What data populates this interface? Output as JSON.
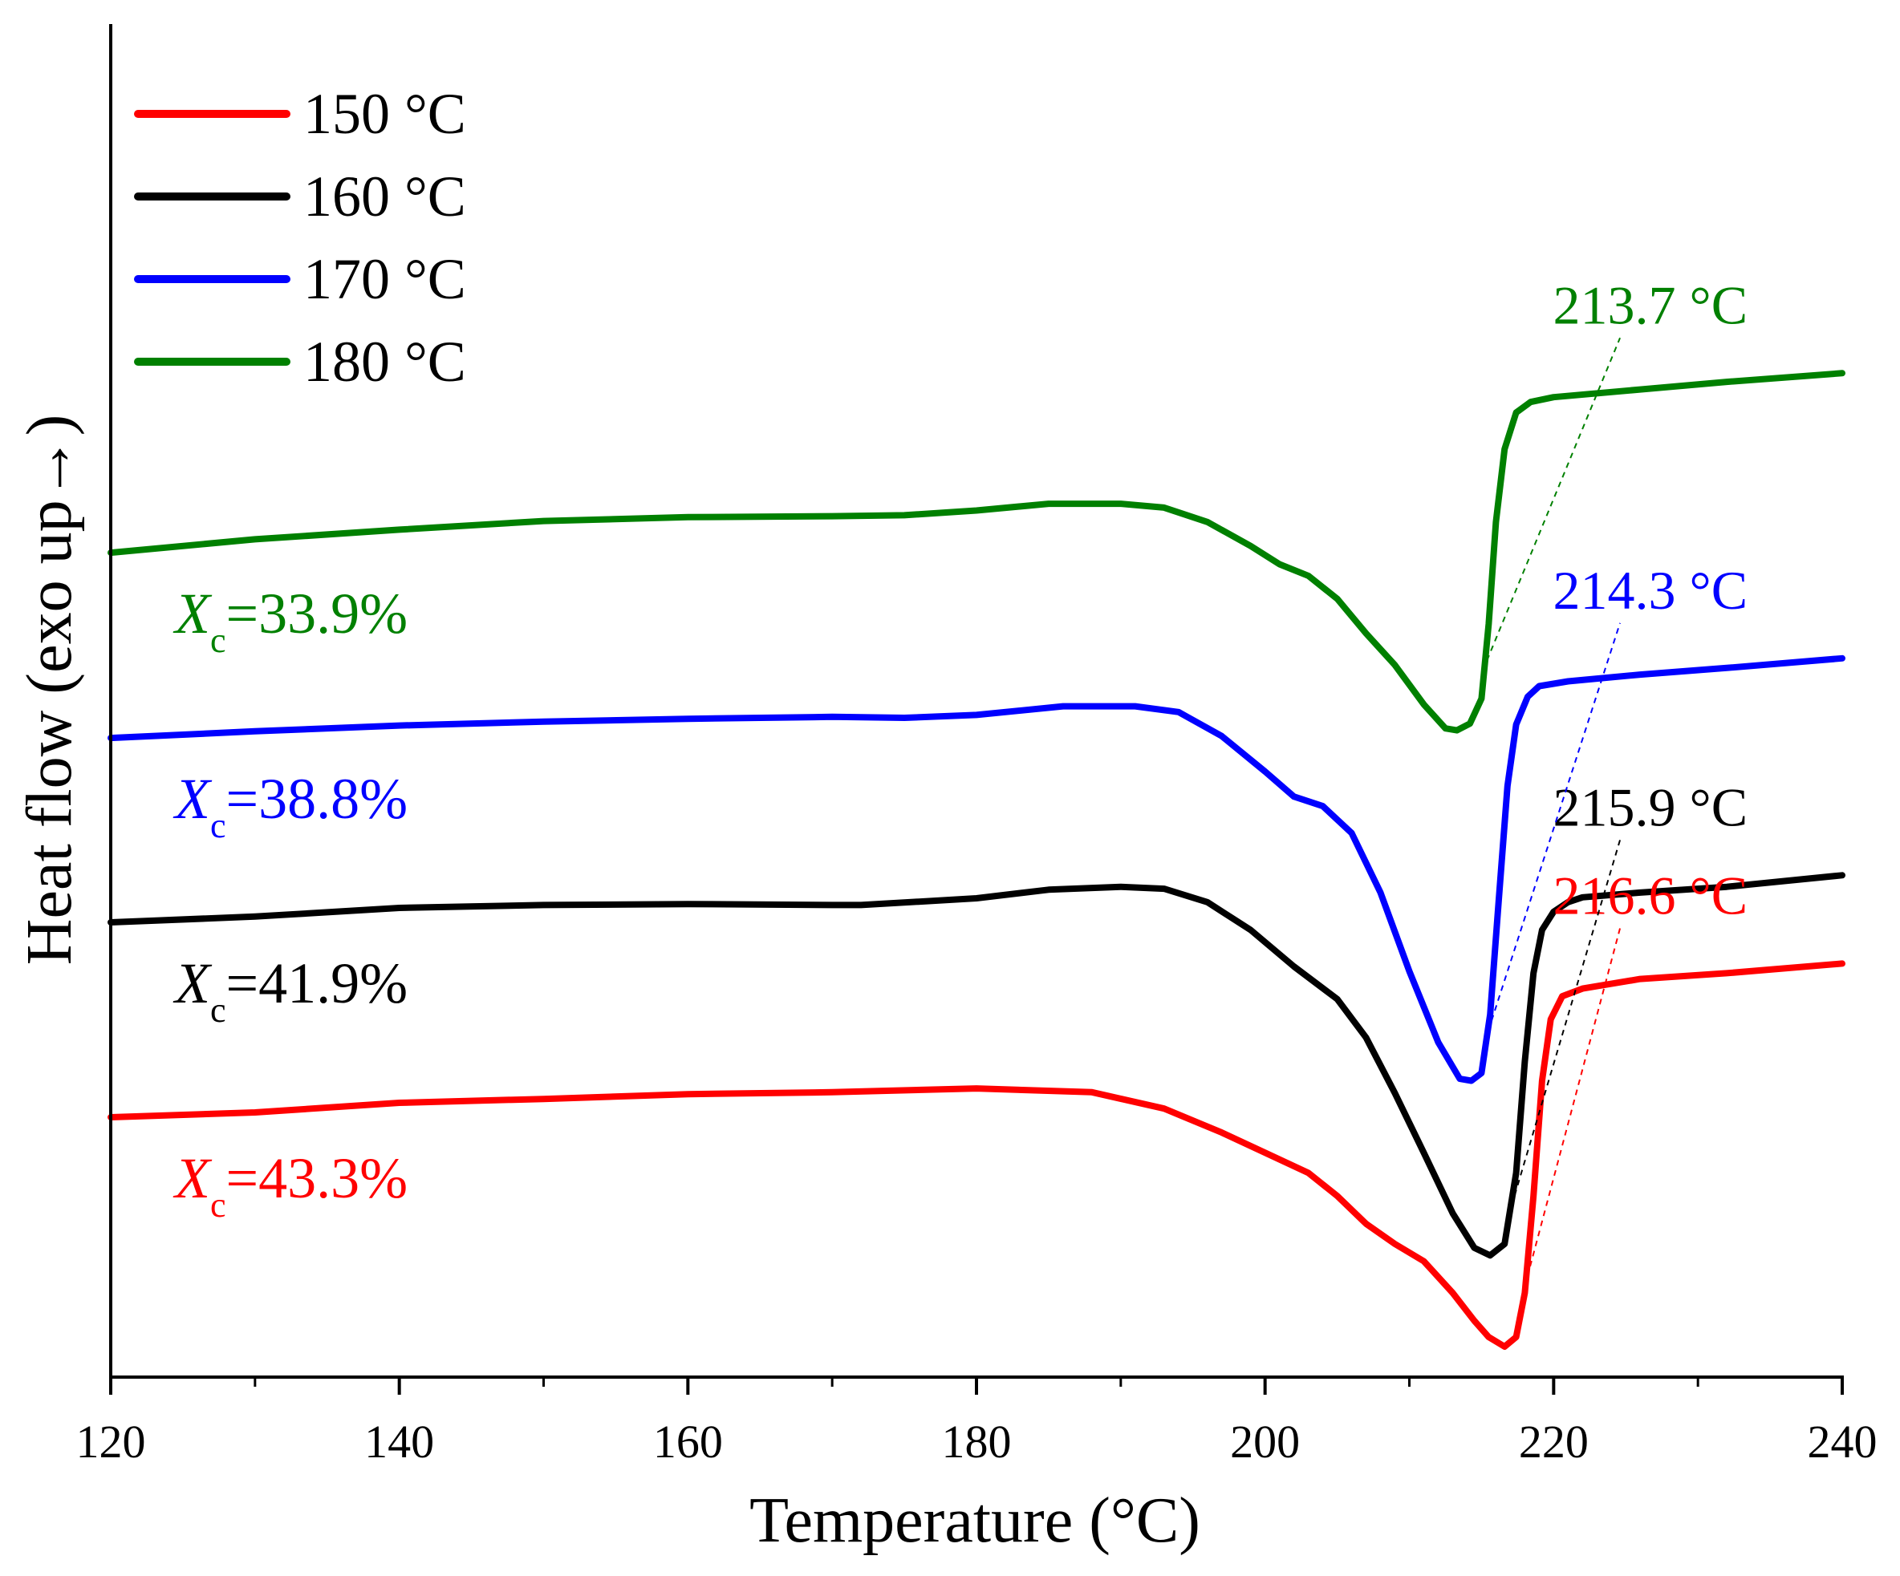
{
  "chart_data": {
    "type": "line",
    "title": "",
    "xlabel": "Temperature (°C)",
    "ylabel": "Heat flow (exo up→)",
    "xlim": [
      120,
      240
    ],
    "ylim": [
      0,
      100
    ],
    "x_ticks": [
      120,
      140,
      160,
      180,
      200,
      220,
      240
    ],
    "x_tick_labels": [
      "120",
      "140",
      "160",
      "180",
      "200",
      "220",
      "240"
    ],
    "grid": false,
    "legend_position": "top-left",
    "series": [
      {
        "name": "150 °C",
        "color": "#ff0000",
        "peak_label": "216.6 °C",
        "peak_temperature": 216.6,
        "xc_symbol": "X",
        "xc_subscript": "c",
        "xc_value": "=43.3%",
        "points": [
          [
            120,
            25.4
          ],
          [
            130,
            25.9
          ],
          [
            140,
            26.9
          ],
          [
            150,
            27.3
          ],
          [
            160,
            27.8
          ],
          [
            170,
            28.0
          ],
          [
            180,
            28.4
          ],
          [
            188,
            28.0
          ],
          [
            193,
            26.3
          ],
          [
            197,
            23.8
          ],
          [
            200,
            21.7
          ],
          [
            203,
            19.6
          ],
          [
            205,
            17.2
          ],
          [
            207,
            14.3
          ],
          [
            209,
            12.2
          ],
          [
            211,
            10.4
          ],
          [
            213,
            7.1
          ],
          [
            214.5,
            4.2
          ],
          [
            215.5,
            2.5
          ],
          [
            216.6,
            1.5
          ],
          [
            217.4,
            2.5
          ],
          [
            218,
            7.1
          ],
          [
            218.6,
            17.2
          ],
          [
            219.2,
            29.2
          ],
          [
            219.8,
            35.6
          ],
          [
            220.6,
            38.0
          ],
          [
            222,
            38.8
          ],
          [
            226,
            39.8
          ],
          [
            232,
            40.4
          ],
          [
            240,
            41.4
          ]
        ]
      },
      {
        "name": "160 °C",
        "color": "#000000",
        "peak_label": "215.9 °C",
        "peak_temperature": 215.9,
        "xc_symbol": "X",
        "xc_subscript": "c",
        "xc_value": "=41.9%",
        "points": [
          [
            120,
            45.7
          ],
          [
            130,
            46.3
          ],
          [
            140,
            47.2
          ],
          [
            150,
            47.5
          ],
          [
            160,
            47.6
          ],
          [
            170,
            47.5
          ],
          [
            172,
            47.5
          ],
          [
            180,
            48.2
          ],
          [
            185,
            49.1
          ],
          [
            190,
            49.4
          ],
          [
            193,
            49.2
          ],
          [
            196,
            47.8
          ],
          [
            199,
            44.9
          ],
          [
            202,
            41.1
          ],
          [
            205,
            37.7
          ],
          [
            207,
            33.7
          ],
          [
            209,
            27.9
          ],
          [
            211,
            21.7
          ],
          [
            213,
            15.4
          ],
          [
            214.5,
            11.8
          ],
          [
            215.6,
            11.0
          ],
          [
            216.6,
            12.2
          ],
          [
            217.4,
            19.6
          ],
          [
            218,
            31.2
          ],
          [
            218.6,
            40.4
          ],
          [
            219.2,
            44.9
          ],
          [
            220,
            46.8
          ],
          [
            221,
            47.8
          ],
          [
            222,
            48.3
          ],
          [
            226,
            48.8
          ],
          [
            232,
            49.4
          ],
          [
            240,
            50.6
          ]
        ]
      },
      {
        "name": "170 °C",
        "color": "#0000ff",
        "peak_label": "214.3 °C",
        "peak_temperature": 214.3,
        "xc_symbol": "X",
        "xc_subscript": "c",
        "xc_value": "=38.8%",
        "points": [
          [
            120,
            64.9
          ],
          [
            130,
            65.6
          ],
          [
            140,
            66.2
          ],
          [
            150,
            66.6
          ],
          [
            160,
            66.9
          ],
          [
            170,
            67.1
          ],
          [
            175,
            67.0
          ],
          [
            180,
            67.3
          ],
          [
            186,
            68.2
          ],
          [
            191,
            68.2
          ],
          [
            194,
            67.6
          ],
          [
            197,
            65.1
          ],
          [
            200,
            61.4
          ],
          [
            202,
            58.8
          ],
          [
            204,
            57.8
          ],
          [
            206,
            55.0
          ],
          [
            208,
            48.8
          ],
          [
            210,
            40.6
          ],
          [
            212,
            33.2
          ],
          [
            213.5,
            29.4
          ],
          [
            214.3,
            29.2
          ],
          [
            215,
            30.0
          ],
          [
            215.6,
            36.1
          ],
          [
            216.2,
            48.1
          ],
          [
            216.8,
            59.9
          ],
          [
            217.4,
            66.3
          ],
          [
            218.2,
            69.2
          ],
          [
            219,
            70.3
          ],
          [
            221,
            70.8
          ],
          [
            226,
            71.5
          ],
          [
            232,
            72.2
          ],
          [
            240,
            73.2
          ]
        ]
      },
      {
        "name": "180 °C",
        "color": "#008000",
        "peak_label": "213.7 °C",
        "peak_temperature": 213.7,
        "xc_symbol": "X",
        "xc_subscript": "c",
        "xc_value": "=33.9%",
        "points": [
          [
            120,
            84.2
          ],
          [
            130,
            85.6
          ],
          [
            140,
            86.6
          ],
          [
            150,
            87.5
          ],
          [
            160,
            87.9
          ],
          [
            170,
            88.0
          ],
          [
            175,
            88.1
          ],
          [
            180,
            88.6
          ],
          [
            185,
            89.3
          ],
          [
            190,
            89.3
          ],
          [
            193,
            88.9
          ],
          [
            196,
            87.4
          ],
          [
            199,
            84.9
          ],
          [
            201,
            83.0
          ],
          [
            203,
            81.8
          ],
          [
            205,
            79.4
          ],
          [
            207,
            75.8
          ],
          [
            209,
            72.5
          ],
          [
            211,
            68.4
          ],
          [
            212.5,
            65.9
          ],
          [
            213.3,
            65.7
          ],
          [
            214.2,
            66.4
          ],
          [
            215,
            69.0
          ],
          [
            215.5,
            76.8
          ],
          [
            216,
            87.4
          ],
          [
            216.6,
            95.0
          ],
          [
            217.4,
            98.8
          ],
          [
            218.4,
            99.9
          ],
          [
            220,
            100.4
          ],
          [
            226,
            101.2
          ],
          [
            232,
            102.0
          ],
          [
            240,
            102.9
          ]
        ]
      }
    ]
  }
}
